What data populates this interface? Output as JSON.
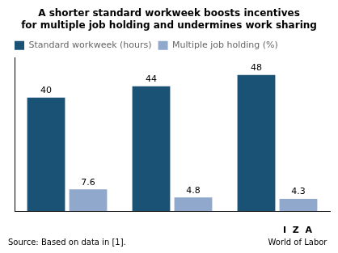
{
  "chart_data": {
    "type": "bar",
    "title": [
      "A shorter standard workweek boosts incentives",
      "for multiple job holding and undermines work sharing"
    ],
    "categories": [
      null,
      null,
      null
    ],
    "series": [
      {
        "name": "Standard workweek (hours)",
        "color": "#1a5276",
        "values": [
          40,
          44,
          48
        ]
      },
      {
        "name": "Multiple job holding (%)",
        "color": "#8fa8cc",
        "values": [
          7.6,
          4.8,
          4.3
        ]
      }
    ],
    "ylim": [
      0,
      54
    ],
    "tick_labels": false,
    "grid": false,
    "data_labels": true,
    "legend": "top left",
    "annotations": [
      "Source: Based on data in [1].",
      "I  Z  A",
      "World of Labor"
    ]
  }
}
